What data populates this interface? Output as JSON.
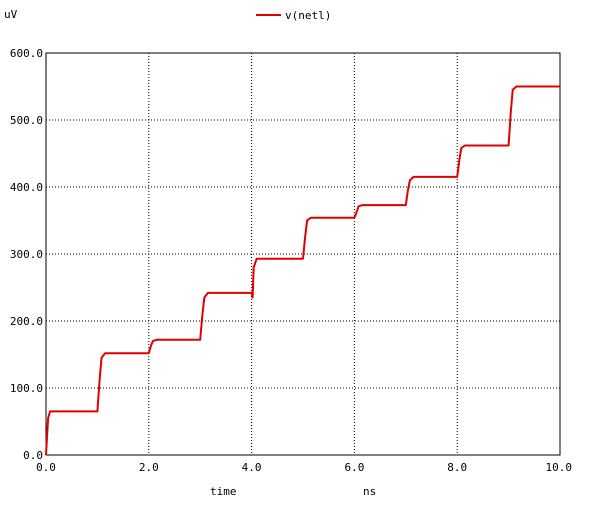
{
  "chart_data": {
    "type": "line",
    "ylabel": "uV",
    "xlabel": "time",
    "xunit": "ns",
    "xlim": [
      0,
      10
    ],
    "ylim": [
      0,
      600
    ],
    "x_ticks": [
      "0.0",
      "2.0",
      "4.0",
      "6.0",
      "8.0",
      "10.0"
    ],
    "y_ticks": [
      "0.0",
      "100.0",
      "200.0",
      "300.0",
      "400.0",
      "500.0",
      "600.0"
    ],
    "grid": true,
    "legend_position": "top-center",
    "series": [
      {
        "name": "v(netl)",
        "color": "#e00000",
        "x": [
          0,
          0.04,
          0.08,
          1.0,
          1.04,
          1.08,
          1.15,
          2.0,
          2.04,
          2.08,
          2.15,
          3.0,
          3.04,
          3.08,
          3.15,
          4.0,
          4.02,
          4.04,
          4.1,
          5.0,
          5.04,
          5.08,
          5.15,
          6.0,
          6.04,
          6.08,
          6.15,
          7.0,
          7.04,
          7.08,
          7.15,
          8.0,
          8.04,
          8.08,
          8.15,
          9.0,
          9.04,
          9.08,
          9.15,
          10.0
        ],
        "y": [
          0,
          55,
          65,
          65,
          110,
          145,
          152,
          152,
          163,
          170,
          172,
          172,
          208,
          235,
          242,
          242,
          235,
          280,
          293,
          293,
          325,
          350,
          354,
          354,
          362,
          371,
          373,
          373,
          395,
          410,
          415,
          415,
          440,
          458,
          462,
          462,
          510,
          545,
          550,
          550
        ]
      }
    ]
  }
}
